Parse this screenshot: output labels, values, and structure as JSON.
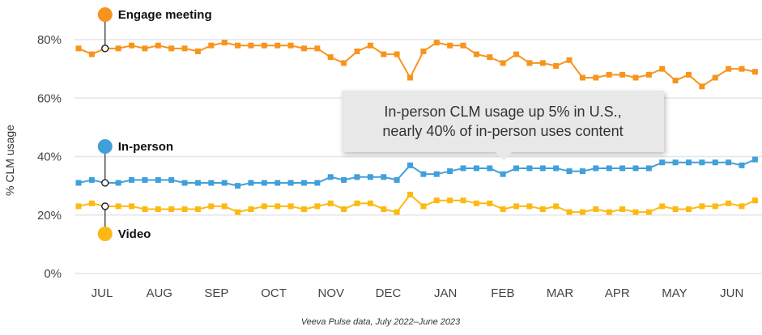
{
  "chart_data": {
    "type": "line",
    "ylabel": "% CLM usage",
    "ylim": [
      0,
      90
    ],
    "yticks": [
      "0%",
      "20%",
      "40%",
      "60%",
      "80%"
    ],
    "ytick_values": [
      0,
      20,
      40,
      60,
      80
    ],
    "xticks": [
      "JUL",
      "AUG",
      "SEP",
      "OCT",
      "NOV",
      "DEC",
      "JAN",
      "FEB",
      "MAR",
      "APR",
      "MAY",
      "JUN"
    ],
    "grid": true,
    "footnote": "Veeva Pulse data, July 2022–June 2023",
    "annotation": [
      "In-person CLM usage up 5% in U.S.,",
      "nearly 40% of in-person uses content"
    ],
    "series": [
      {
        "name": "Engage meeting",
        "color": "#f7941d",
        "values": [
          77,
          75,
          77,
          77,
          78,
          77,
          78,
          77,
          77,
          76,
          78,
          79,
          78,
          78,
          78,
          78,
          78,
          77,
          77,
          74,
          72,
          76,
          78,
          75,
          75,
          67,
          76,
          79,
          78,
          78,
          75,
          74,
          72,
          75,
          72,
          72,
          71,
          73,
          67,
          67,
          68,
          68,
          67,
          68,
          70,
          66,
          68,
          64,
          67,
          70,
          70,
          69
        ]
      },
      {
        "name": "In-person",
        "color": "#419fd9",
        "values": [
          31,
          32,
          31,
          31,
          32,
          32,
          32,
          32,
          31,
          31,
          31,
          31,
          30,
          31,
          31,
          31,
          31,
          31,
          31,
          33,
          32,
          33,
          33,
          33,
          32,
          37,
          34,
          34,
          35,
          36,
          36,
          36,
          34,
          36,
          36,
          36,
          36,
          35,
          35,
          36,
          36,
          36,
          36,
          36,
          38,
          38,
          38,
          38,
          38,
          38,
          37,
          39
        ]
      },
      {
        "name": "Video",
        "color": "#fdb913",
        "values": [
          23,
          24,
          23,
          23,
          23,
          22,
          22,
          22,
          22,
          22,
          23,
          23,
          21,
          22,
          23,
          23,
          23,
          22,
          23,
          24,
          22,
          24,
          24,
          22,
          21,
          27,
          23,
          25,
          25,
          25,
          24,
          24,
          22,
          23,
          23,
          22,
          23,
          21,
          21,
          22,
          21,
          22,
          21,
          21,
          23,
          22,
          22,
          23,
          23,
          24,
          23,
          25
        ]
      }
    ],
    "legend_marker_index": 2
  }
}
